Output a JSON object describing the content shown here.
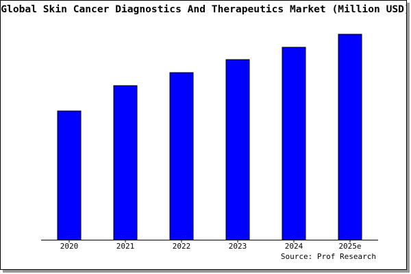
{
  "chart_data": {
    "type": "bar",
    "title": "Global Skin Cancer Diagnostics And Therapeutics Market (Million USD)",
    "categories": [
      "2020",
      "2021",
      "2022",
      "2023",
      "2024",
      "2025e"
    ],
    "values": [
      188,
      225,
      244,
      263,
      281,
      300
    ],
    "color": "#0000ff",
    "ylim": [
      0,
      300
    ],
    "source": "Source: Prof Research"
  }
}
